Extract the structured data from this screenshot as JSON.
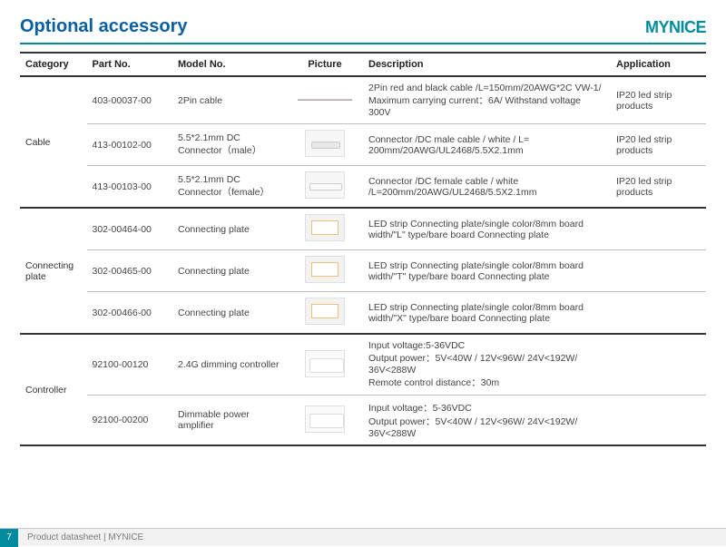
{
  "header": {
    "title": "Optional accessory",
    "brand": "MYNICE"
  },
  "columns": {
    "category": "Category",
    "part": "Part No.",
    "model": "Model No.",
    "picture": "Picture",
    "description": "Description",
    "application": "Application"
  },
  "groups": [
    {
      "category": "Cable",
      "rows": [
        {
          "part": "403-00037-00",
          "model": "2Pin cable",
          "pic": "cable",
          "description": "2Pin red and black cable /L=150mm/20AWG*2C VW-1/ Maximum carrying current：6A/ Withstand voltage 300V",
          "application": "IP20 led strip products"
        },
        {
          "part": "413-00102-00",
          "model": "5.5*2.1mm DC Connector（male）",
          "pic": "dc-male",
          "description": "Connector /DC male cable / white / L= 200mm/20AWG/UL2468/5.5X2.1mm",
          "application": "IP20 led strip products"
        },
        {
          "part": "413-00103-00",
          "model": "5.5*2.1mm DC Connector（female）",
          "pic": "dc-female",
          "description": "Connector /DC female cable / white /L=200mm/20AWG/UL2468/5.5X2.1mm",
          "application": "IP20 led strip products"
        }
      ]
    },
    {
      "category": "Connecting plate",
      "rows": [
        {
          "part": "302-00464-00",
          "model": "Connecting plate",
          "pic": "plate",
          "description": "LED strip Connecting plate/single color/8mm board width/\"L\" type/bare board Connecting plate",
          "application": ""
        },
        {
          "part": "302-00465-00",
          "model": "Connecting plate",
          "pic": "plate",
          "description": "LED strip Connecting plate/single color/8mm board width/\"T\" type/bare board Connecting plate",
          "application": ""
        },
        {
          "part": "302-00466-00",
          "model": "Connecting plate",
          "pic": "plate",
          "description": "LED strip Connecting plate/single color/8mm board width/\"X\" type/bare board Connecting plate",
          "application": ""
        }
      ]
    },
    {
      "category": "Controller",
      "rows": [
        {
          "part": "92100-00120",
          "model": "2.4G dimming controller",
          "pic": "ctrl",
          "description": "Input voltage:5-36VDC\nOutput power：5V<40W / 12V<96W/ 24V<192W/ 36V<288W\nRemote control distance：30m",
          "application": ""
        },
        {
          "part": "92100-00200",
          "model": "Dimmable power amplifier",
          "pic": "ctrl",
          "description": "Input voltage：5-36VDC\nOutput power：5V<40W / 12V<96W/ 24V<192W/ 36V<288W",
          "application": ""
        }
      ]
    }
  ],
  "footer": {
    "page": "7",
    "text": "Product datasheet | MYNICE"
  }
}
